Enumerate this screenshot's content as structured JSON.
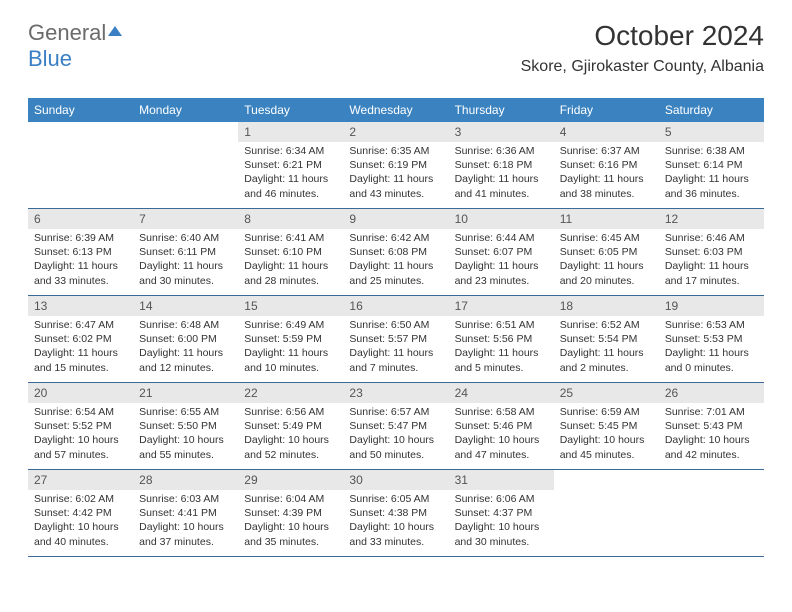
{
  "brand": {
    "part1": "General",
    "part2": "Blue"
  },
  "header": {
    "title": "October 2024",
    "location": "Skore, Gjirokaster County, Albania"
  },
  "colors": {
    "header_bg": "#3b83c0",
    "header_text": "#ffffff",
    "date_bg": "#e8e8e8",
    "date_text": "#555555",
    "body_text": "#333333",
    "week_border": "#3b6a99",
    "brand_gray": "#6b6b6b",
    "brand_blue": "#3b7fc4"
  },
  "typography": {
    "title_fontsize": 28,
    "location_fontsize": 16,
    "dayheader_fontsize": 12,
    "date_fontsize": 12,
    "body_fontsize": 10.5
  },
  "weekdays": [
    "Sunday",
    "Monday",
    "Tuesday",
    "Wednesday",
    "Thursday",
    "Friday",
    "Saturday"
  ],
  "weeks": [
    [
      null,
      null,
      {
        "date": "1",
        "sunrise": "Sunrise: 6:34 AM",
        "sunset": "Sunset: 6:21 PM",
        "daylight1": "Daylight: 11 hours",
        "daylight2": "and 46 minutes."
      },
      {
        "date": "2",
        "sunrise": "Sunrise: 6:35 AM",
        "sunset": "Sunset: 6:19 PM",
        "daylight1": "Daylight: 11 hours",
        "daylight2": "and 43 minutes."
      },
      {
        "date": "3",
        "sunrise": "Sunrise: 6:36 AM",
        "sunset": "Sunset: 6:18 PM",
        "daylight1": "Daylight: 11 hours",
        "daylight2": "and 41 minutes."
      },
      {
        "date": "4",
        "sunrise": "Sunrise: 6:37 AM",
        "sunset": "Sunset: 6:16 PM",
        "daylight1": "Daylight: 11 hours",
        "daylight2": "and 38 minutes."
      },
      {
        "date": "5",
        "sunrise": "Sunrise: 6:38 AM",
        "sunset": "Sunset: 6:14 PM",
        "daylight1": "Daylight: 11 hours",
        "daylight2": "and 36 minutes."
      }
    ],
    [
      {
        "date": "6",
        "sunrise": "Sunrise: 6:39 AM",
        "sunset": "Sunset: 6:13 PM",
        "daylight1": "Daylight: 11 hours",
        "daylight2": "and 33 minutes."
      },
      {
        "date": "7",
        "sunrise": "Sunrise: 6:40 AM",
        "sunset": "Sunset: 6:11 PM",
        "daylight1": "Daylight: 11 hours",
        "daylight2": "and 30 minutes."
      },
      {
        "date": "8",
        "sunrise": "Sunrise: 6:41 AM",
        "sunset": "Sunset: 6:10 PM",
        "daylight1": "Daylight: 11 hours",
        "daylight2": "and 28 minutes."
      },
      {
        "date": "9",
        "sunrise": "Sunrise: 6:42 AM",
        "sunset": "Sunset: 6:08 PM",
        "daylight1": "Daylight: 11 hours",
        "daylight2": "and 25 minutes."
      },
      {
        "date": "10",
        "sunrise": "Sunrise: 6:44 AM",
        "sunset": "Sunset: 6:07 PM",
        "daylight1": "Daylight: 11 hours",
        "daylight2": "and 23 minutes."
      },
      {
        "date": "11",
        "sunrise": "Sunrise: 6:45 AM",
        "sunset": "Sunset: 6:05 PM",
        "daylight1": "Daylight: 11 hours",
        "daylight2": "and 20 minutes."
      },
      {
        "date": "12",
        "sunrise": "Sunrise: 6:46 AM",
        "sunset": "Sunset: 6:03 PM",
        "daylight1": "Daylight: 11 hours",
        "daylight2": "and 17 minutes."
      }
    ],
    [
      {
        "date": "13",
        "sunrise": "Sunrise: 6:47 AM",
        "sunset": "Sunset: 6:02 PM",
        "daylight1": "Daylight: 11 hours",
        "daylight2": "and 15 minutes."
      },
      {
        "date": "14",
        "sunrise": "Sunrise: 6:48 AM",
        "sunset": "Sunset: 6:00 PM",
        "daylight1": "Daylight: 11 hours",
        "daylight2": "and 12 minutes."
      },
      {
        "date": "15",
        "sunrise": "Sunrise: 6:49 AM",
        "sunset": "Sunset: 5:59 PM",
        "daylight1": "Daylight: 11 hours",
        "daylight2": "and 10 minutes."
      },
      {
        "date": "16",
        "sunrise": "Sunrise: 6:50 AM",
        "sunset": "Sunset: 5:57 PM",
        "daylight1": "Daylight: 11 hours",
        "daylight2": "and 7 minutes."
      },
      {
        "date": "17",
        "sunrise": "Sunrise: 6:51 AM",
        "sunset": "Sunset: 5:56 PM",
        "daylight1": "Daylight: 11 hours",
        "daylight2": "and 5 minutes."
      },
      {
        "date": "18",
        "sunrise": "Sunrise: 6:52 AM",
        "sunset": "Sunset: 5:54 PM",
        "daylight1": "Daylight: 11 hours",
        "daylight2": "and 2 minutes."
      },
      {
        "date": "19",
        "sunrise": "Sunrise: 6:53 AM",
        "sunset": "Sunset: 5:53 PM",
        "daylight1": "Daylight: 11 hours",
        "daylight2": "and 0 minutes."
      }
    ],
    [
      {
        "date": "20",
        "sunrise": "Sunrise: 6:54 AM",
        "sunset": "Sunset: 5:52 PM",
        "daylight1": "Daylight: 10 hours",
        "daylight2": "and 57 minutes."
      },
      {
        "date": "21",
        "sunrise": "Sunrise: 6:55 AM",
        "sunset": "Sunset: 5:50 PM",
        "daylight1": "Daylight: 10 hours",
        "daylight2": "and 55 minutes."
      },
      {
        "date": "22",
        "sunrise": "Sunrise: 6:56 AM",
        "sunset": "Sunset: 5:49 PM",
        "daylight1": "Daylight: 10 hours",
        "daylight2": "and 52 minutes."
      },
      {
        "date": "23",
        "sunrise": "Sunrise: 6:57 AM",
        "sunset": "Sunset: 5:47 PM",
        "daylight1": "Daylight: 10 hours",
        "daylight2": "and 50 minutes."
      },
      {
        "date": "24",
        "sunrise": "Sunrise: 6:58 AM",
        "sunset": "Sunset: 5:46 PM",
        "daylight1": "Daylight: 10 hours",
        "daylight2": "and 47 minutes."
      },
      {
        "date": "25",
        "sunrise": "Sunrise: 6:59 AM",
        "sunset": "Sunset: 5:45 PM",
        "daylight1": "Daylight: 10 hours",
        "daylight2": "and 45 minutes."
      },
      {
        "date": "26",
        "sunrise": "Sunrise: 7:01 AM",
        "sunset": "Sunset: 5:43 PM",
        "daylight1": "Daylight: 10 hours",
        "daylight2": "and 42 minutes."
      }
    ],
    [
      {
        "date": "27",
        "sunrise": "Sunrise: 6:02 AM",
        "sunset": "Sunset: 4:42 PM",
        "daylight1": "Daylight: 10 hours",
        "daylight2": "and 40 minutes."
      },
      {
        "date": "28",
        "sunrise": "Sunrise: 6:03 AM",
        "sunset": "Sunset: 4:41 PM",
        "daylight1": "Daylight: 10 hours",
        "daylight2": "and 37 minutes."
      },
      {
        "date": "29",
        "sunrise": "Sunrise: 6:04 AM",
        "sunset": "Sunset: 4:39 PM",
        "daylight1": "Daylight: 10 hours",
        "daylight2": "and 35 minutes."
      },
      {
        "date": "30",
        "sunrise": "Sunrise: 6:05 AM",
        "sunset": "Sunset: 4:38 PM",
        "daylight1": "Daylight: 10 hours",
        "daylight2": "and 33 minutes."
      },
      {
        "date": "31",
        "sunrise": "Sunrise: 6:06 AM",
        "sunset": "Sunset: 4:37 PM",
        "daylight1": "Daylight: 10 hours",
        "daylight2": "and 30 minutes."
      },
      null,
      null
    ]
  ]
}
